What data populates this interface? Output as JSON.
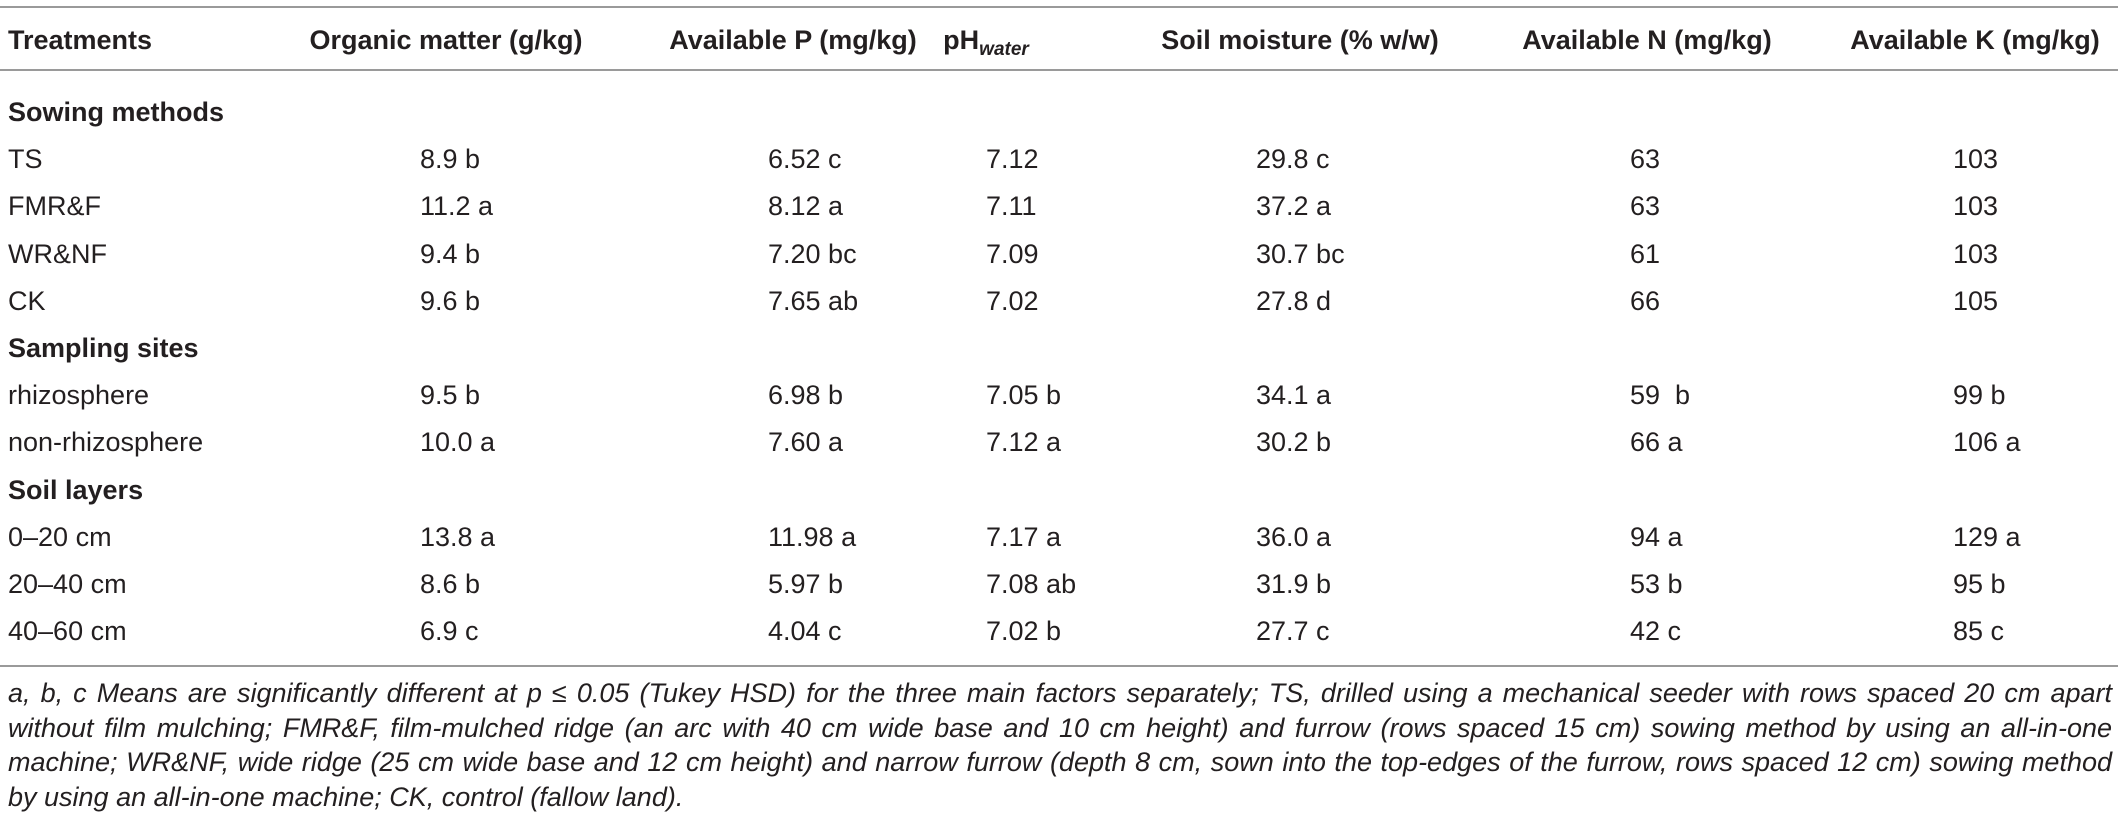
{
  "table": {
    "header": [
      "Treatments",
      "Organic matter (g/kg)",
      "Available P (mg/kg)",
      {
        "text": "pH",
        "sub": "water"
      },
      "Soil moisture (% w/w)",
      "Available N (mg/kg)",
      "Available K (mg/kg)"
    ],
    "sections": [
      {
        "title": "Sowing methods",
        "rows": [
          [
            "TS",
            "8.9 b",
            "6.52 c",
            "7.12",
            "29.8 c",
            "63",
            "103"
          ],
          [
            "FMR&F",
            "11.2 a",
            "8.12 a",
            "7.11",
            "37.2 a",
            "63",
            "103"
          ],
          [
            "WR&NF",
            "9.4 b",
            "7.20 bc",
            "7.09",
            "30.7 bc",
            "61",
            "103"
          ],
          [
            "CK",
            "9.6 b",
            "7.65 ab",
            "7.02",
            "27.8 d",
            "66",
            "105"
          ]
        ]
      },
      {
        "title": "Sampling sites",
        "rows": [
          [
            "rhizosphere",
            "9.5 b",
            "6.98 b",
            "7.05 b",
            "34.1 a",
            "59  b",
            "99 b"
          ],
          [
            "non-rhizosphere",
            "10.0 a",
            "7.60 a",
            "7.12 a",
            "30.2 b",
            "66 a",
            "106 a"
          ]
        ]
      },
      {
        "title": "Soil layers",
        "rows": [
          [
            "0–20 cm",
            "13.8 a",
            "11.98 a",
            "7.17 a",
            "36.0 a",
            "94 a",
            "129 a"
          ],
          [
            "20–40 cm",
            "8.6 b",
            "5.97 b",
            "7.08 ab",
            "31.9 b",
            "53 b",
            "95 b"
          ],
          [
            "40–60 cm",
            "6.9 c",
            "4.04 c",
            "7.02 b",
            "27.7 c",
            "42 c",
            "85 c"
          ]
        ]
      }
    ],
    "footnote": "a, b, c Means are significantly different at p ≤ 0.05 (Tukey HSD) for the three main factors separately; TS, drilled using a mechanical seeder with rows spaced 20 cm apart without film mulching; FMR&F, film-mulched ridge (an arc with 40 cm wide base and 10 cm height) and furrow (rows spaced 15 cm) sowing method by using an all-in-one machine; WR&NF, wide ridge (25 cm wide base and 12 cm height) and narrow furrow (depth 8 cm, sown into the top-edges of the furrow, rows spaced 12 cm) sowing method by using an all-in-one machine; CK, control (fallow land)."
  }
}
